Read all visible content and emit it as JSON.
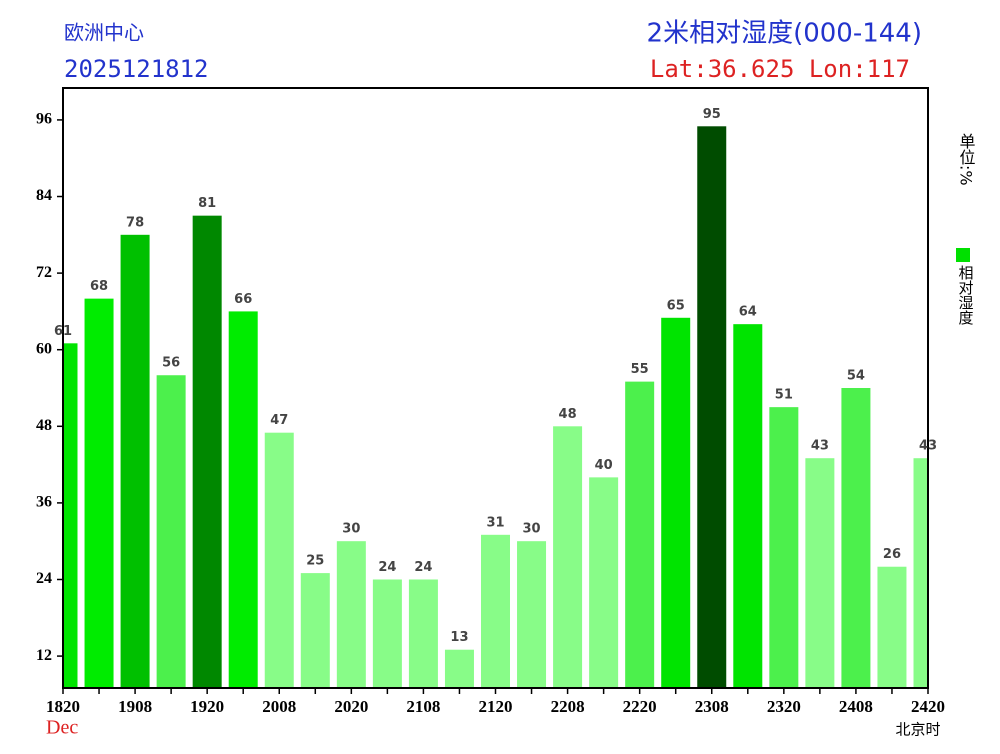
{
  "chart_data": {
    "type": "bar",
    "source": "欧洲中心",
    "run": "2025121812",
    "title": "2米相对湿度(000-144)",
    "location": "Lat:36.625 Lon:117",
    "month": "Dec",
    "x_label": "北京时",
    "unit_label": "单位:%",
    "categories": [
      "1820",
      null,
      "1908",
      null,
      "1920",
      null,
      "2008",
      null,
      "2020",
      null,
      "2108",
      null,
      "2120",
      null,
      "2208",
      null,
      "2220",
      null,
      "2308",
      null,
      "2320",
      null,
      "2408",
      null,
      "2420"
    ],
    "series": [
      {
        "name": "相对湿度",
        "color": "#00e000",
        "values": [
          61,
          68,
          78,
          56,
          81,
          66,
          47,
          25,
          30,
          24,
          24,
          13,
          31,
          30,
          48,
          40,
          55,
          65,
          95,
          64,
          51,
          43,
          54,
          26,
          43
        ],
        "colors": [
          "#00e400",
          "#00ec00",
          "#00c000",
          "#4cf04c",
          "#008800",
          "#00ec00",
          "#88fc88",
          "#88fc88",
          "#88fc88",
          "#88fc88",
          "#88fc88",
          "#88fc88",
          "#88fc88",
          "#88fc88",
          "#88fc88",
          "#88fc88",
          "#4cf04c",
          "#00e400",
          "#004c00",
          "#00e400",
          "#4cf04c",
          "#88fc88",
          "#4cf04c",
          "#88fc88",
          "#88fc88"
        ]
      }
    ],
    "ylim": [
      7,
      101
    ],
    "yticks": [
      12,
      24,
      36,
      48,
      60,
      72,
      84,
      96
    ]
  }
}
